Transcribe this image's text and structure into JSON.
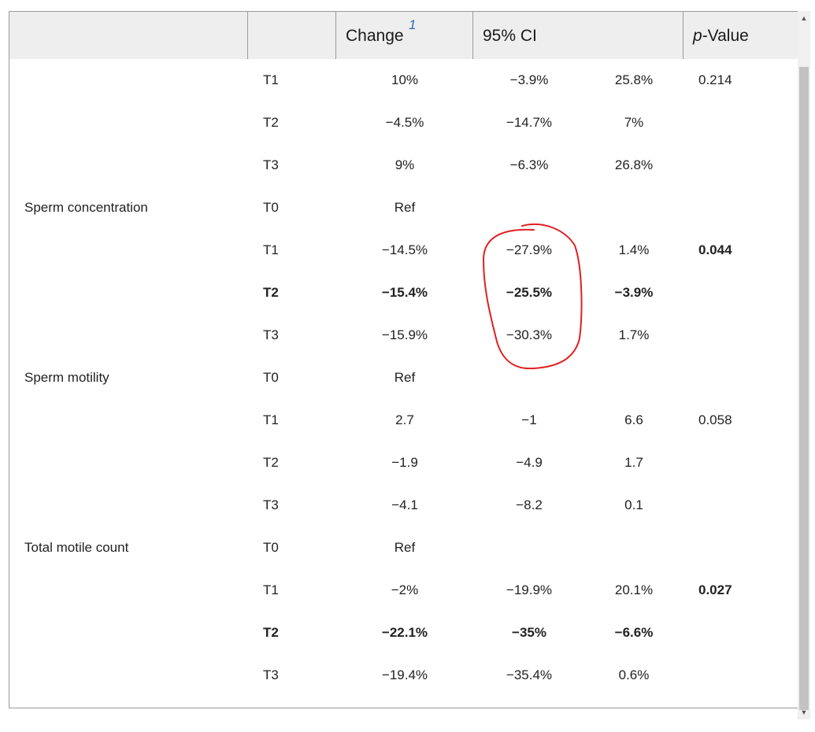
{
  "header": {
    "change": "Change",
    "change_sup": "1",
    "ci": "95% CI",
    "p_italic": "p",
    "p_rest": "-Value"
  },
  "rows": [
    {
      "label": "",
      "tertile": "T1",
      "change": "10%",
      "ci_low": "−3.9%",
      "ci_high": "25.8%",
      "p": "0.214",
      "bold": false,
      "p_bold": false
    },
    {
      "label": "",
      "tertile": "T2",
      "change": "−4.5%",
      "ci_low": "−14.7%",
      "ci_high": "7%",
      "p": "",
      "bold": false,
      "p_bold": false
    },
    {
      "label": "",
      "tertile": "T3",
      "change": "9%",
      "ci_low": "−6.3%",
      "ci_high": "26.8%",
      "p": "",
      "bold": false,
      "p_bold": false
    },
    {
      "label": "Sperm concentration",
      "tertile": "T0",
      "change": "Ref",
      "ci_low": "",
      "ci_high": "",
      "p": "",
      "bold": false,
      "p_bold": false
    },
    {
      "label": "",
      "tertile": "T1",
      "change": "−14.5%",
      "ci_low": "−27.9%",
      "ci_high": "1.4%",
      "p": "0.044",
      "bold": false,
      "p_bold": true
    },
    {
      "label": "",
      "tertile": "T2",
      "change": "−15.4%",
      "ci_low": "−25.5%",
      "ci_high": "−3.9%",
      "p": "",
      "bold": true,
      "p_bold": false
    },
    {
      "label": "",
      "tertile": "T3",
      "change": "−15.9%",
      "ci_low": "−30.3%",
      "ci_high": "1.7%",
      "p": "",
      "bold": false,
      "p_bold": false
    },
    {
      "label": "Sperm motility",
      "tertile": "T0",
      "change": "Ref",
      "ci_low": "",
      "ci_high": "",
      "p": "",
      "bold": false,
      "p_bold": false
    },
    {
      "label": "",
      "tertile": "T1",
      "change": "2.7",
      "ci_low": "−1",
      "ci_high": "6.6",
      "p": "0.058",
      "bold": false,
      "p_bold": false
    },
    {
      "label": "",
      "tertile": "T2",
      "change": "−1.9",
      "ci_low": "−4.9",
      "ci_high": "1.7",
      "p": "",
      "bold": false,
      "p_bold": false
    },
    {
      "label": "",
      "tertile": "T3",
      "change": "−4.1",
      "ci_low": "−8.2",
      "ci_high": "0.1",
      "p": "",
      "bold": false,
      "p_bold": false
    },
    {
      "label": "Total motile count",
      "tertile": "T0",
      "change": "Ref",
      "ci_low": "",
      "ci_high": "",
      "p": "",
      "bold": false,
      "p_bold": false
    },
    {
      "label": "",
      "tertile": "T1",
      "change": "−2%",
      "ci_low": "−19.9%",
      "ci_high": "20.1%",
      "p": "0.027",
      "bold": false,
      "p_bold": true
    },
    {
      "label": "",
      "tertile": "T2",
      "change": "−22.1%",
      "ci_low": "−35%",
      "ci_high": "−6.6%",
      "p": "",
      "bold": true,
      "p_bold": false
    },
    {
      "label": "",
      "tertile": "T3",
      "change": "−19.4%",
      "ci_low": "−35.4%",
      "ci_high": "0.6%",
      "p": "",
      "bold": false,
      "p_bold": false
    }
  ],
  "annotation": {
    "color": "#e02020"
  },
  "scrollbar": {
    "up_glyph": "▲",
    "down_glyph": "▼"
  }
}
